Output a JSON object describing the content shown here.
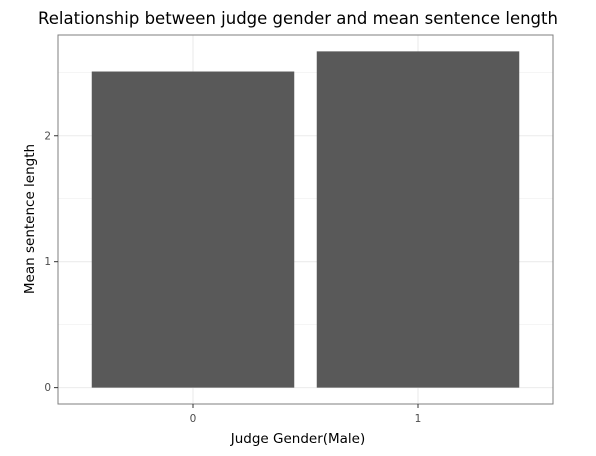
{
  "chart_data": {
    "type": "bar",
    "title": "Relationship between judge gender and mean sentence length",
    "xlabel": "Judge Gender(Male)",
    "ylabel": "Mean sentence length",
    "categories": [
      "0",
      "1"
    ],
    "values": [
      2.51,
      2.67
    ],
    "ylim": [
      -0.13,
      2.8
    ],
    "yticks": [
      0,
      1,
      2
    ],
    "ytick_labels": [
      "0",
      "1",
      "2"
    ],
    "grid": true,
    "legend": "none",
    "bar_color": "#595959",
    "panel_border_color": "#7f7f7f",
    "grid_color": "#ebebeb",
    "background": "#ffffff"
  }
}
